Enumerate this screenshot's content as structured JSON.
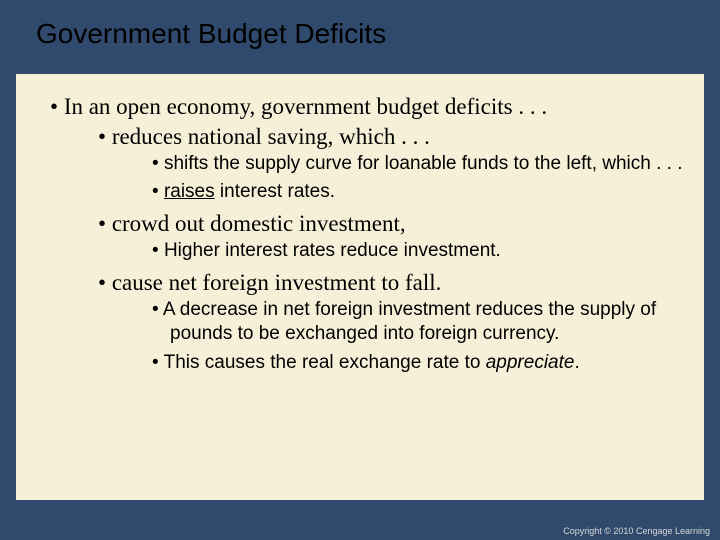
{
  "title": "Government Budget Deficits",
  "b1": "In an open economy, government budget deficits . . .",
  "b1_1": "reduces national saving, which . . .",
  "b1_1_1a": "shifts the supply curve for loanable funds to the left, which . . .",
  "b1_1_2_u": "raises",
  "b1_1_2b": " interest rates.",
  "b1_2": "crowd out domestic investment,",
  "b1_2_1": "Higher interest rates reduce investment.",
  "b1_3": "cause net foreign investment to fall.",
  "b1_3_1": "A decrease in net foreign investment reduces the supply of pounds to be exchanged into foreign currency.",
  "b1_3_2a": "This causes the real exchange rate to ",
  "b1_3_2_i": "appreciate",
  "b1_3_2b": ".",
  "copyright": "Copyright © 2010 Cengage Learning",
  "colors": {
    "background": "#2f4a6c",
    "content_bg": "#f7f0d9",
    "text": "#000000",
    "copyright_text": "#d8d8d8"
  }
}
